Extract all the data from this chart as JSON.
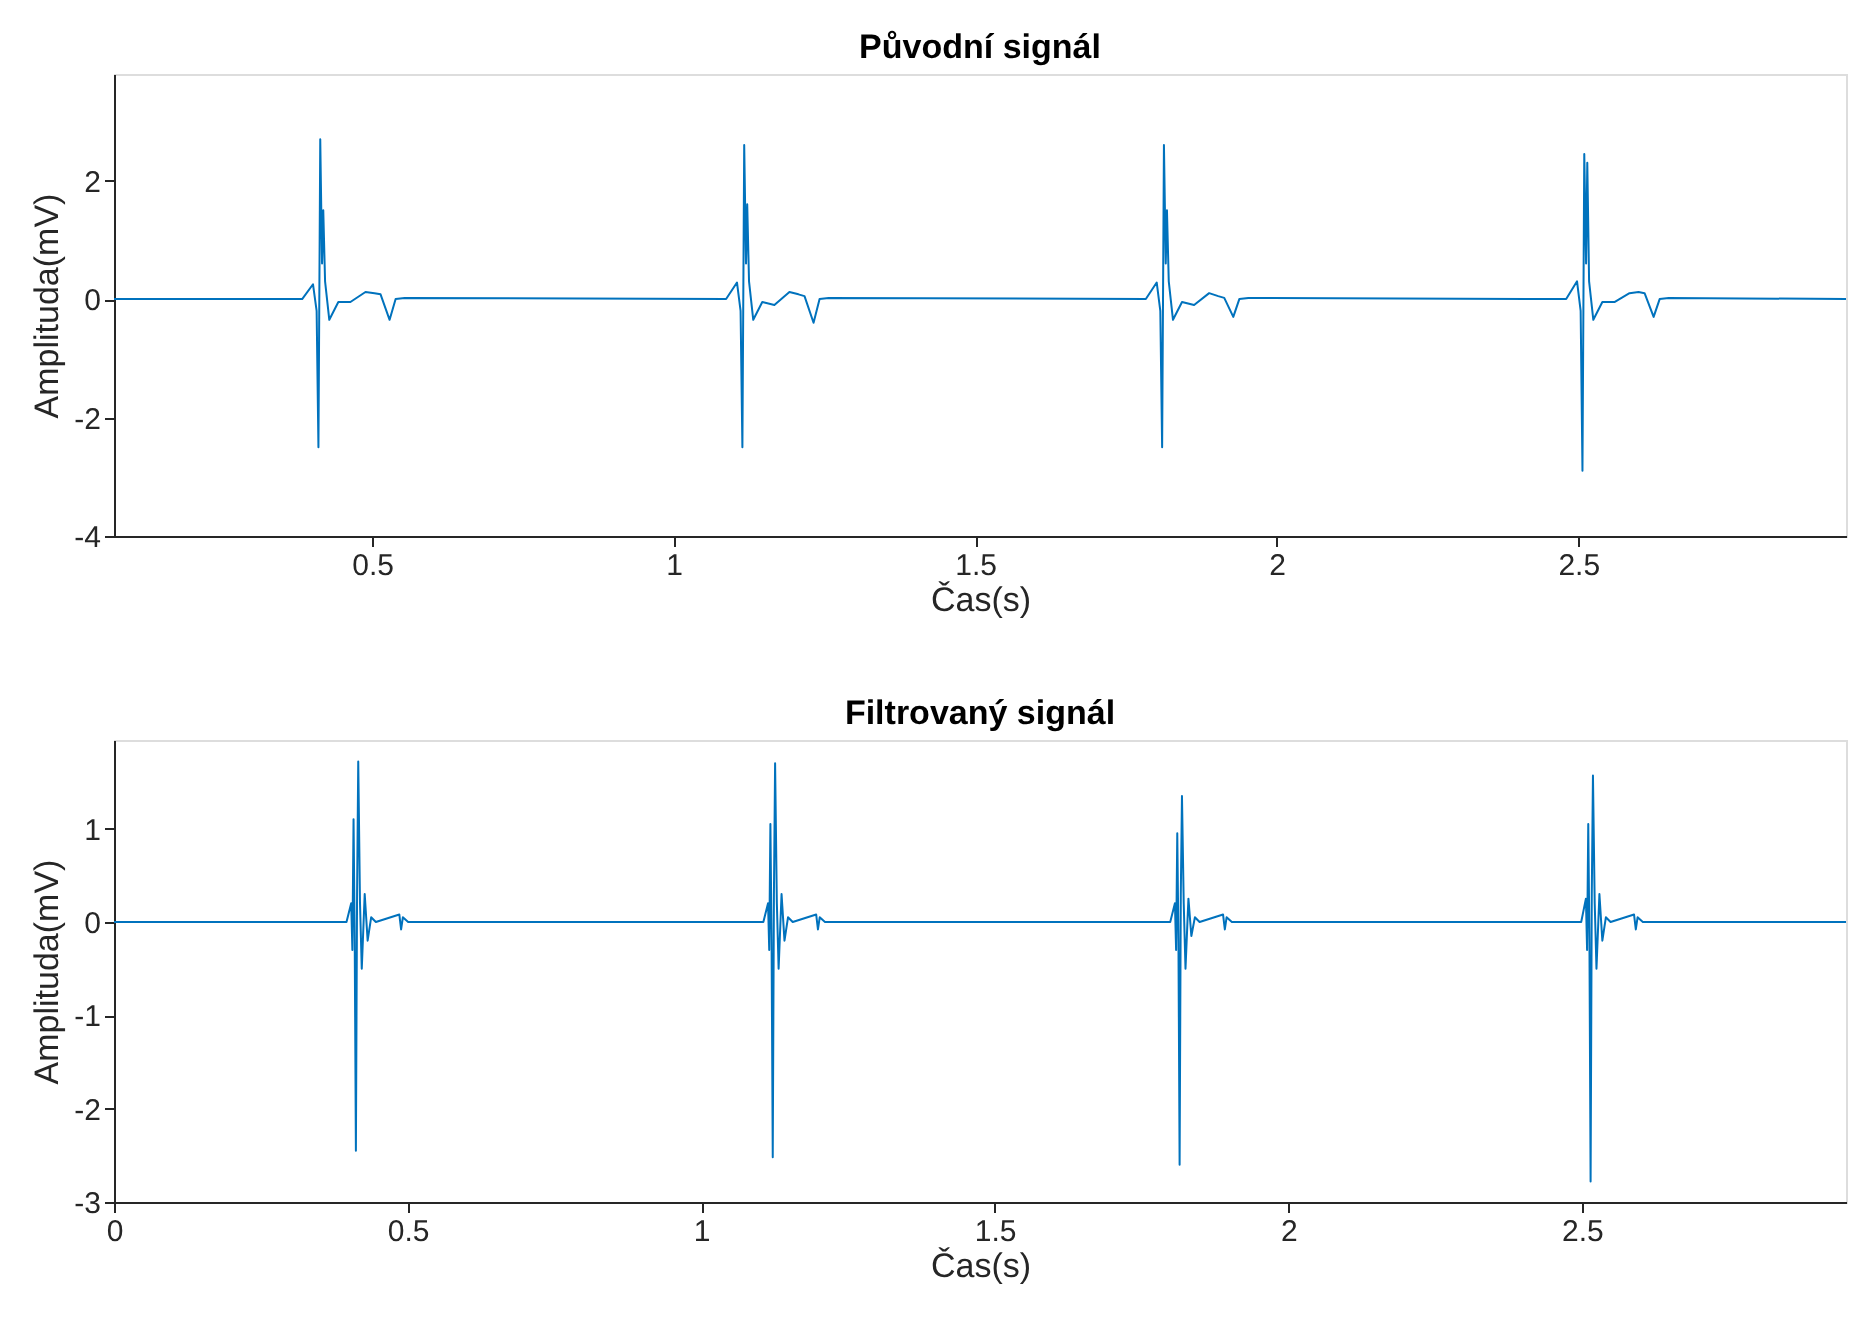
{
  "chart_data": [
    {
      "type": "line",
      "title": "Původní signál",
      "xlabel": "Čas(s)",
      "ylabel": "Amplituda(mV)",
      "xlim": [
        0.072,
        2.944
      ],
      "ylim": [
        -4,
        3.8
      ],
      "xticks": [
        0.5,
        1,
        1.5,
        2,
        2.5
      ],
      "yticks": [
        -4,
        -2,
        0,
        2
      ],
      "grid": false,
      "legend": false,
      "marker": "none",
      "line_style": "solid",
      "series": [
        {
          "color": "#0072bd",
          "x": [
            0.072,
            0.384,
            0.402,
            0.408,
            0.411,
            0.414,
            0.417,
            0.419,
            0.422,
            0.429,
            0.444,
            0.464,
            0.489,
            0.504,
            0.514,
            0.529,
            0.539,
            0.554,
            1.087,
            1.105,
            1.111,
            1.114,
            1.117,
            1.12,
            1.122,
            1.125,
            1.132,
            1.147,
            1.167,
            1.192,
            1.207,
            1.217,
            1.232,
            1.242,
            1.257,
            1.783,
            1.801,
            1.807,
            1.81,
            1.813,
            1.816,
            1.818,
            1.821,
            1.828,
            1.843,
            1.863,
            1.888,
            1.903,
            1.913,
            1.928,
            1.938,
            1.953,
            2.48,
            2.498,
            2.504,
            2.507,
            2.51,
            2.513,
            2.515,
            2.518,
            2.525,
            2.54,
            2.56,
            2.585,
            2.6,
            2.61,
            2.625,
            2.635,
            2.65,
            2.944
          ],
          "values": [
            0,
            0,
            0.25,
            -0.2,
            -2.5,
            2.7,
            0.6,
            1.5,
            0.3,
            -0.35,
            -0.05,
            -0.05,
            0.12,
            0.1,
            0.08,
            -0.35,
            0,
            0.02,
            0,
            0.28,
            -0.2,
            -2.5,
            2.6,
            0.6,
            1.6,
            0.3,
            -0.35,
            -0.05,
            -0.1,
            0.12,
            0.08,
            0.05,
            -0.4,
            0,
            0.02,
            0,
            0.28,
            -0.2,
            -2.5,
            2.6,
            0.6,
            1.5,
            0.3,
            -0.35,
            -0.05,
            -0.1,
            0.1,
            0.05,
            0.02,
            -0.3,
            0,
            0.02,
            0,
            0.3,
            -0.2,
            -2.9,
            2.45,
            0.6,
            2.3,
            0.3,
            -0.35,
            -0.05,
            -0.05,
            0.1,
            0.12,
            0.1,
            -0.3,
            0,
            0.02,
            0
          ]
        }
      ]
    },
    {
      "type": "line",
      "title": "Filtrovaný signál",
      "xlabel": "Čas(s)",
      "ylabel": "Amplituda(mV)",
      "xlim": [
        0,
        2.95
      ],
      "ylim": [
        -3,
        1.95
      ],
      "xticks": [
        0,
        0.5,
        1,
        1.5,
        2,
        2.5
      ],
      "yticks": [
        -3,
        -2,
        -1,
        0,
        1
      ],
      "grid": false,
      "legend": false,
      "marker": "none",
      "line_style": "solid",
      "series": [
        {
          "color": "#0072bd",
          "x": [
            0,
            0.396,
            0.404,
            0.406,
            0.408,
            0.41,
            0.412,
            0.414,
            0.416,
            0.419,
            0.422,
            0.427,
            0.432,
            0.438,
            0.446,
            0.486,
            0.489,
            0.492,
            0.501,
            1.106,
            1.114,
            1.116,
            1.118,
            1.12,
            1.122,
            1.124,
            1.126,
            1.129,
            1.132,
            1.137,
            1.142,
            1.148,
            1.156,
            1.196,
            1.199,
            1.202,
            1.211,
            1.799,
            1.807,
            1.809,
            1.811,
            1.813,
            1.815,
            1.817,
            1.819,
            1.822,
            1.825,
            1.83,
            1.835,
            1.841,
            1.849,
            1.889,
            1.892,
            1.895,
            1.904,
            2.499,
            2.507,
            2.509,
            2.511,
            2.513,
            2.515,
            2.517,
            2.519,
            2.522,
            2.525,
            2.53,
            2.535,
            2.541,
            2.549,
            2.589,
            2.592,
            2.595,
            2.604,
            2.95
          ],
          "values": [
            0,
            0,
            0.2,
            -0.3,
            1.1,
            -0.2,
            -2.45,
            0.3,
            1.72,
            0.2,
            -0.5,
            0.3,
            -0.2,
            0.05,
            0,
            0.08,
            -0.08,
            0.05,
            0,
            0,
            0.2,
            -0.3,
            1.05,
            -0.2,
            -2.52,
            0.3,
            1.7,
            0.2,
            -0.5,
            0.3,
            -0.2,
            0.05,
            0,
            0.08,
            -0.08,
            0.05,
            0,
            0,
            0.2,
            -0.3,
            0.95,
            -0.2,
            -2.6,
            0.3,
            1.35,
            0.2,
            -0.5,
            0.25,
            -0.15,
            0.05,
            0,
            0.08,
            -0.08,
            0.05,
            0,
            0,
            0.25,
            -0.3,
            1.05,
            -0.2,
            -2.78,
            0.3,
            1.57,
            0.2,
            -0.5,
            0.3,
            -0.2,
            0.05,
            0,
            0.08,
            -0.08,
            0.05,
            0,
            0
          ]
        }
      ]
    }
  ]
}
